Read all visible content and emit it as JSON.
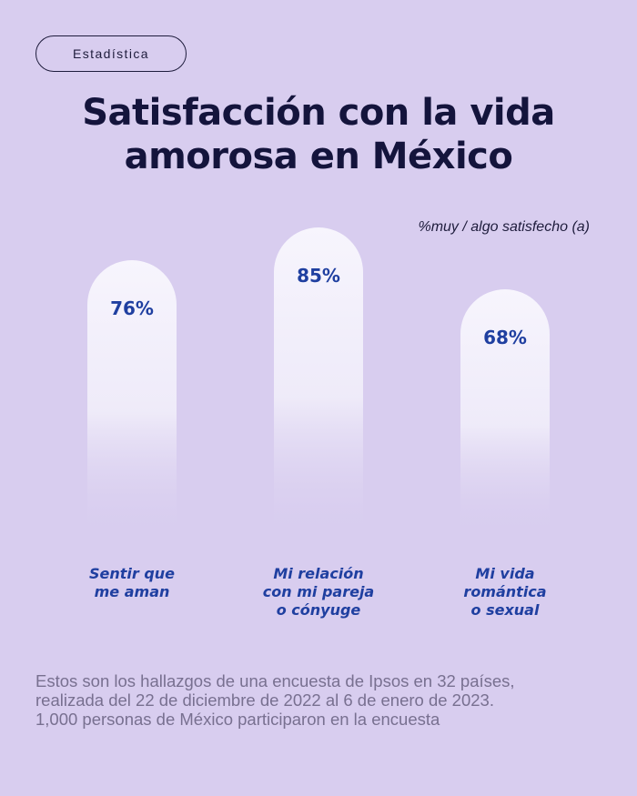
{
  "tag": "Estadística",
  "title_lines": [
    "Satisfacción con la vida",
    "amorosa en México"
  ],
  "unit_note": "%muy / algo satisfecho (a)",
  "chart_data": {
    "type": "bar",
    "categories": [
      "Sentir que\nme aman",
      "Mi relación\ncon mi pareja\no cónyuge",
      "Mi vida\nromántica\no sexual"
    ],
    "values": [
      76,
      85,
      68
    ],
    "value_labels": [
      "76%",
      "85%",
      "68%"
    ],
    "ylim": [
      0,
      100
    ],
    "grid": false
  },
  "footnote_lines": [
    "Estos son los hallazgos de una encuesta de Ipsos en 32 países,",
    "realizada del 22 de diciembre de 2022 al 6 de enero de 2023.",
    "1,000 personas de México participaron en la encuesta"
  ],
  "colors": {
    "background": "#d8cdef",
    "bar_top": "#f7f5fd",
    "value_text": "#1f3fa0",
    "title_text": "#14143c"
  }
}
